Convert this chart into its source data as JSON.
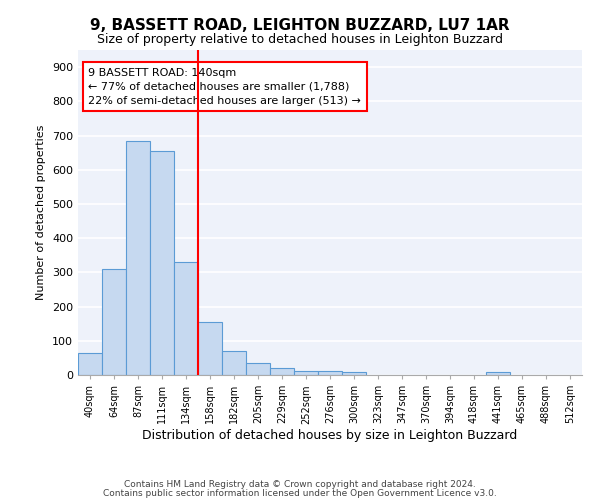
{
  "title1": "9, BASSETT ROAD, LEIGHTON BUZZARD, LU7 1AR",
  "title2": "Size of property relative to detached houses in Leighton Buzzard",
  "xlabel": "Distribution of detached houses by size in Leighton Buzzard",
  "ylabel": "Number of detached properties",
  "categories": [
    "40sqm",
    "64sqm",
    "87sqm",
    "111sqm",
    "134sqm",
    "158sqm",
    "182sqm",
    "205sqm",
    "229sqm",
    "252sqm",
    "276sqm",
    "300sqm",
    "323sqm",
    "347sqm",
    "370sqm",
    "394sqm",
    "418sqm",
    "441sqm",
    "465sqm",
    "488sqm",
    "512sqm"
  ],
  "values": [
    65,
    310,
    685,
    655,
    330,
    155,
    70,
    35,
    20,
    12,
    12,
    10,
    0,
    0,
    0,
    0,
    0,
    10,
    0,
    0,
    0
  ],
  "bar_color": "#c6d9f0",
  "bar_edge_color": "#5b9bd5",
  "red_line_x": 4.5,
  "annotation_line1": "9 BASSETT ROAD: 140sqm",
  "annotation_line2": "← 77% of detached houses are smaller (1,788)",
  "annotation_line3": "22% of semi-detached houses are larger (513) →",
  "annotation_box_color": "white",
  "annotation_box_edge_color": "red",
  "red_line_color": "red",
  "ylim": [
    0,
    950
  ],
  "yticks": [
    0,
    100,
    200,
    300,
    400,
    500,
    600,
    700,
    800,
    900
  ],
  "background_color": "#eef2fa",
  "grid_color": "white",
  "footer1": "Contains HM Land Registry data © Crown copyright and database right 2024.",
  "footer2": "Contains public sector information licensed under the Open Government Licence v3.0.",
  "title1_fontsize": 11,
  "title2_fontsize": 9
}
